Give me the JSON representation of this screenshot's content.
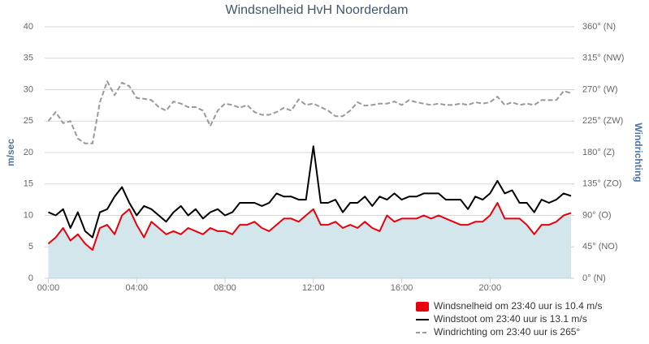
{
  "chart_data": {
    "type": "line",
    "title": "Windsnelheid HvH Noorderdam",
    "y_label": "m/sec",
    "y2_label": "Windrichting",
    "x": [
      0,
      20,
      40,
      60,
      80,
      100,
      120,
      140,
      160,
      180,
      200,
      220,
      240,
      260,
      280,
      300,
      320,
      340,
      360,
      380,
      400,
      420,
      440,
      460,
      480,
      500,
      520,
      540,
      560,
      580,
      600,
      620,
      640,
      660,
      680,
      700,
      720,
      740,
      760,
      780,
      800,
      820,
      840,
      860,
      880,
      900,
      920,
      940,
      960,
      980,
      1000,
      1020,
      1040,
      1060,
      1080,
      1100,
      1120,
      1140,
      1160,
      1180,
      1200,
      1220,
      1240,
      1260,
      1280,
      1300,
      1320,
      1340,
      1360,
      1380,
      1400,
      1420
    ],
    "xlim": [
      -10,
      1420
    ],
    "xticks": [
      {
        "value": 0,
        "label": "00:00"
      },
      {
        "value": 240,
        "label": "04:00"
      },
      {
        "value": 480,
        "label": "08:00"
      },
      {
        "value": 720,
        "label": "12:00"
      },
      {
        "value": 960,
        "label": "16:00"
      },
      {
        "value": 1200,
        "label": "20:00"
      }
    ],
    "ylim": [
      0,
      40
    ],
    "yticks": [
      0,
      5,
      10,
      15,
      20,
      25,
      30,
      35,
      40
    ],
    "y2lim": [
      0,
      360
    ],
    "y2ticks": [
      {
        "value": 0,
        "label": "0° (N)"
      },
      {
        "value": 45,
        "label": "45° (NO)"
      },
      {
        "value": 90,
        "label": "90° (O)"
      },
      {
        "value": 135,
        "label": "135° (ZO)"
      },
      {
        "value": 180,
        "label": "180° (Z)"
      },
      {
        "value": 225,
        "label": "225° (ZW)"
      },
      {
        "value": 270,
        "label": "270° (W)"
      },
      {
        "value": 315,
        "label": "315° (NW)"
      },
      {
        "value": 360,
        "label": "360° (N)"
      }
    ],
    "grid": true,
    "series": [
      {
        "name": "Windsnelheid om 23:40 uur is 10.4 m/s",
        "color": "#e8000b",
        "area_color": "#d2e6ec",
        "values": [
          5.5,
          6.5,
          8,
          6,
          7,
          5.5,
          4.5,
          8,
          8.5,
          7,
          10,
          11,
          8.5,
          6.5,
          9,
          8,
          7,
          7.5,
          7,
          8,
          7.5,
          7,
          8,
          7.5,
          7.5,
          7,
          8.5,
          8.5,
          9,
          8,
          7.5,
          8.5,
          9.5,
          9.5,
          9,
          10,
          11,
          8.5,
          8.5,
          9,
          8,
          8.5,
          8,
          9,
          8,
          7.5,
          10,
          9,
          9.5,
          9.5,
          9.5,
          10,
          9.5,
          10,
          9.5,
          9,
          8.5,
          8.5,
          9,
          9,
          10,
          12,
          9.5,
          9.5,
          9.5,
          8.5,
          7,
          8.5,
          8.5,
          9,
          10,
          10.4
        ]
      },
      {
        "name": "Windstoot om 23:40 uur is 13.1 m/s",
        "color": "#000000",
        "values": [
          10.5,
          10,
          11,
          8,
          10.5,
          7.5,
          6.5,
          10.5,
          11,
          13,
          14.5,
          12,
          10,
          11.5,
          11,
          10,
          9,
          10.5,
          11.5,
          10,
          11,
          9.5,
          10.5,
          11,
          10,
          10.5,
          12,
          12,
          12,
          11.5,
          12,
          13.5,
          13,
          13,
          12.5,
          12.5,
          21,
          12,
          12,
          12.5,
          10.5,
          12,
          12,
          13,
          11.5,
          13,
          12.5,
          13.5,
          12.5,
          13,
          13,
          13.5,
          13.5,
          13.5,
          12.5,
          12.5,
          12.5,
          11,
          13,
          12.5,
          13.5,
          15.5,
          13.5,
          14,
          12,
          12,
          10.5,
          12.5,
          12,
          12.5,
          13.5,
          13.1
        ]
      },
      {
        "name": "Windrichting om 23:40 uur is 265°",
        "color": "#999999",
        "axis": "y2",
        "dashed": true,
        "values": [
          225,
          238,
          222,
          225,
          200,
          193,
          193,
          252,
          282,
          262,
          280,
          275,
          258,
          257,
          255,
          245,
          240,
          253,
          250,
          245,
          245,
          240,
          218,
          240,
          250,
          248,
          244,
          248,
          238,
          234,
          234,
          238,
          244,
          240,
          256,
          248,
          250,
          245,
          240,
          232,
          232,
          240,
          252,
          247,
          248,
          250,
          250,
          253,
          248,
          255,
          252,
          250,
          248,
          250,
          248,
          248,
          250,
          248,
          252,
          250,
          252,
          260,
          248,
          252,
          248,
          250,
          248,
          255,
          255,
          255,
          268,
          265
        ]
      }
    ]
  }
}
